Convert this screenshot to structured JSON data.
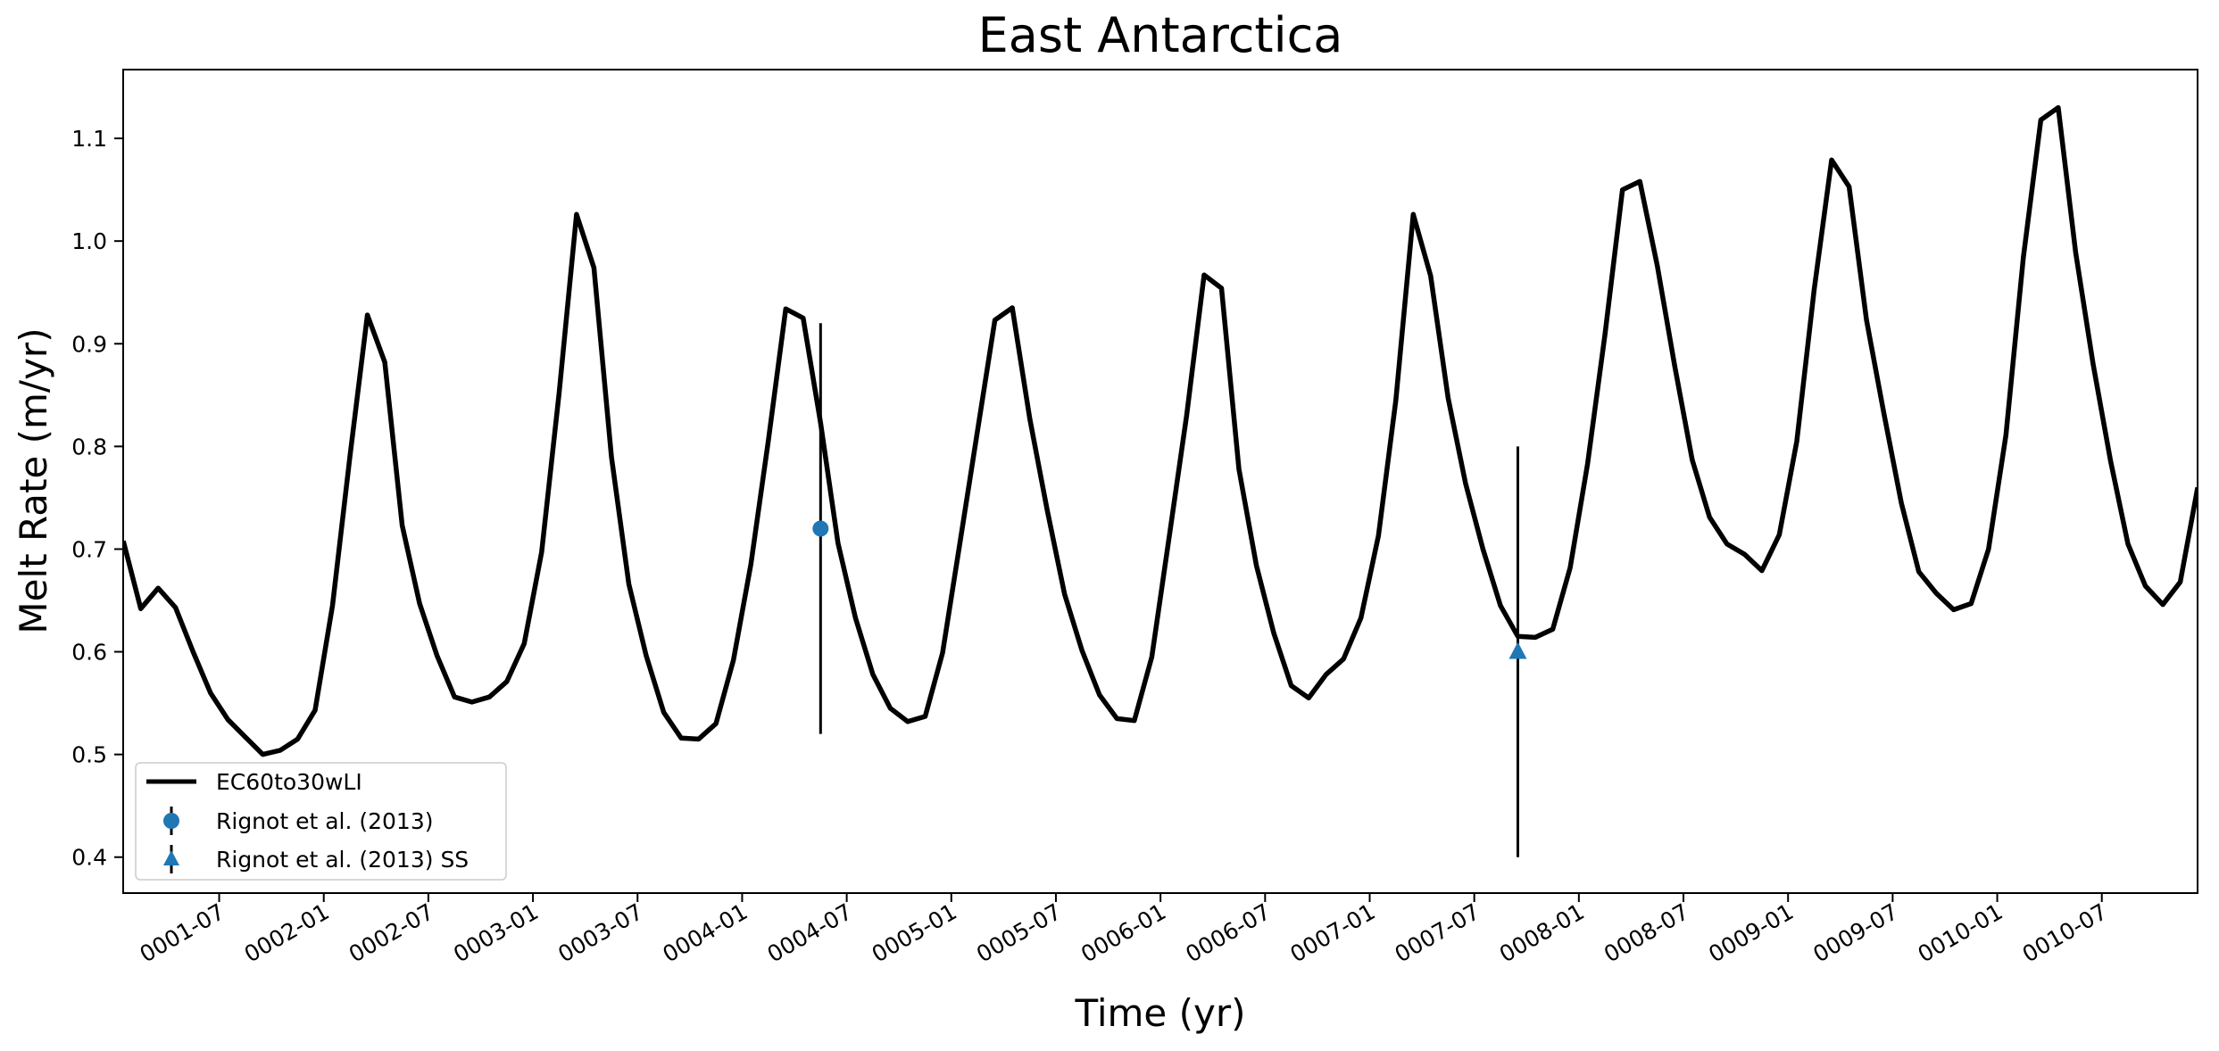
{
  "chart_data": {
    "type": "line",
    "title": "East Antarctica",
    "xlabel": "Time (yr)",
    "ylabel": "Melt Rate (m/yr)",
    "x_tick_labels": [
      "0001-07",
      "0002-01",
      "0002-07",
      "0003-01",
      "0003-07",
      "0004-01",
      "0004-07",
      "0005-01",
      "0005-07",
      "0006-01",
      "0006-07",
      "0007-01",
      "0007-07",
      "0008-01",
      "0008-07",
      "0009-01",
      "0009-07",
      "0010-01",
      "0010-07"
    ],
    "y_ticks": [
      0.4,
      0.5,
      0.6,
      0.7,
      0.8,
      0.9,
      1.0,
      1.1
    ],
    "y_tick_labels": [
      "0.4",
      "0.5",
      "0.6",
      "0.7",
      "0.8",
      "0.9",
      "1.0",
      "1.1"
    ],
    "xlim": [
      "0001-01-16",
      "0010-12-16"
    ],
    "ylim": [
      0.365,
      1.167
    ],
    "grid": false,
    "legend_position": "lower-left",
    "series": [
      {
        "name": "EC60to30wLI",
        "color": "#000000",
        "start_month": "0001-01",
        "y": [
          0.708,
          0.642,
          0.662,
          0.643,
          0.6,
          0.56,
          0.534,
          0.517,
          0.5,
          0.504,
          0.515,
          0.543,
          0.645,
          0.79,
          0.928,
          0.882,
          0.723,
          0.647,
          0.596,
          0.556,
          0.551,
          0.556,
          0.571,
          0.608,
          0.697,
          0.852,
          1.026,
          0.974,
          0.79,
          0.666,
          0.596,
          0.541,
          0.516,
          0.515,
          0.53,
          0.592,
          0.685,
          0.805,
          0.934,
          0.925,
          0.823,
          0.706,
          0.633,
          0.578,
          0.545,
          0.532,
          0.537,
          0.599,
          0.707,
          0.815,
          0.923,
          0.935,
          0.827,
          0.738,
          0.656,
          0.601,
          0.558,
          0.535,
          0.533,
          0.595,
          0.712,
          0.83,
          0.967,
          0.954,
          0.778,
          0.684,
          0.618,
          0.567,
          0.555,
          0.578,
          0.593,
          0.633,
          0.713,
          0.845,
          1.026,
          0.966,
          0.847,
          0.764,
          0.7,
          0.645,
          0.615,
          0.614,
          0.622,
          0.682,
          0.783,
          0.909,
          1.05,
          1.058,
          0.976,
          0.878,
          0.787,
          0.731,
          0.705,
          0.695,
          0.679,
          0.714,
          0.805,
          0.953,
          1.079,
          1.053,
          0.923,
          0.832,
          0.745,
          0.678,
          0.657,
          0.641,
          0.647,
          0.7,
          0.811,
          0.984,
          1.118,
          1.13,
          0.989,
          0.88,
          0.786,
          0.705,
          0.664,
          0.646,
          0.668,
          0.76
        ]
      }
    ],
    "observations": [
      {
        "name": "Rignot et al. (2013)",
        "marker": "circle",
        "color": "#1f77b4",
        "x": "0004-05",
        "y": 0.72,
        "yerr": 0.2
      },
      {
        "name": "Rignot et al. (2013) SS",
        "marker": "triangle",
        "color": "#1f77b4",
        "x": "0007-09",
        "y": 0.6,
        "yerr": 0.2
      }
    ]
  }
}
